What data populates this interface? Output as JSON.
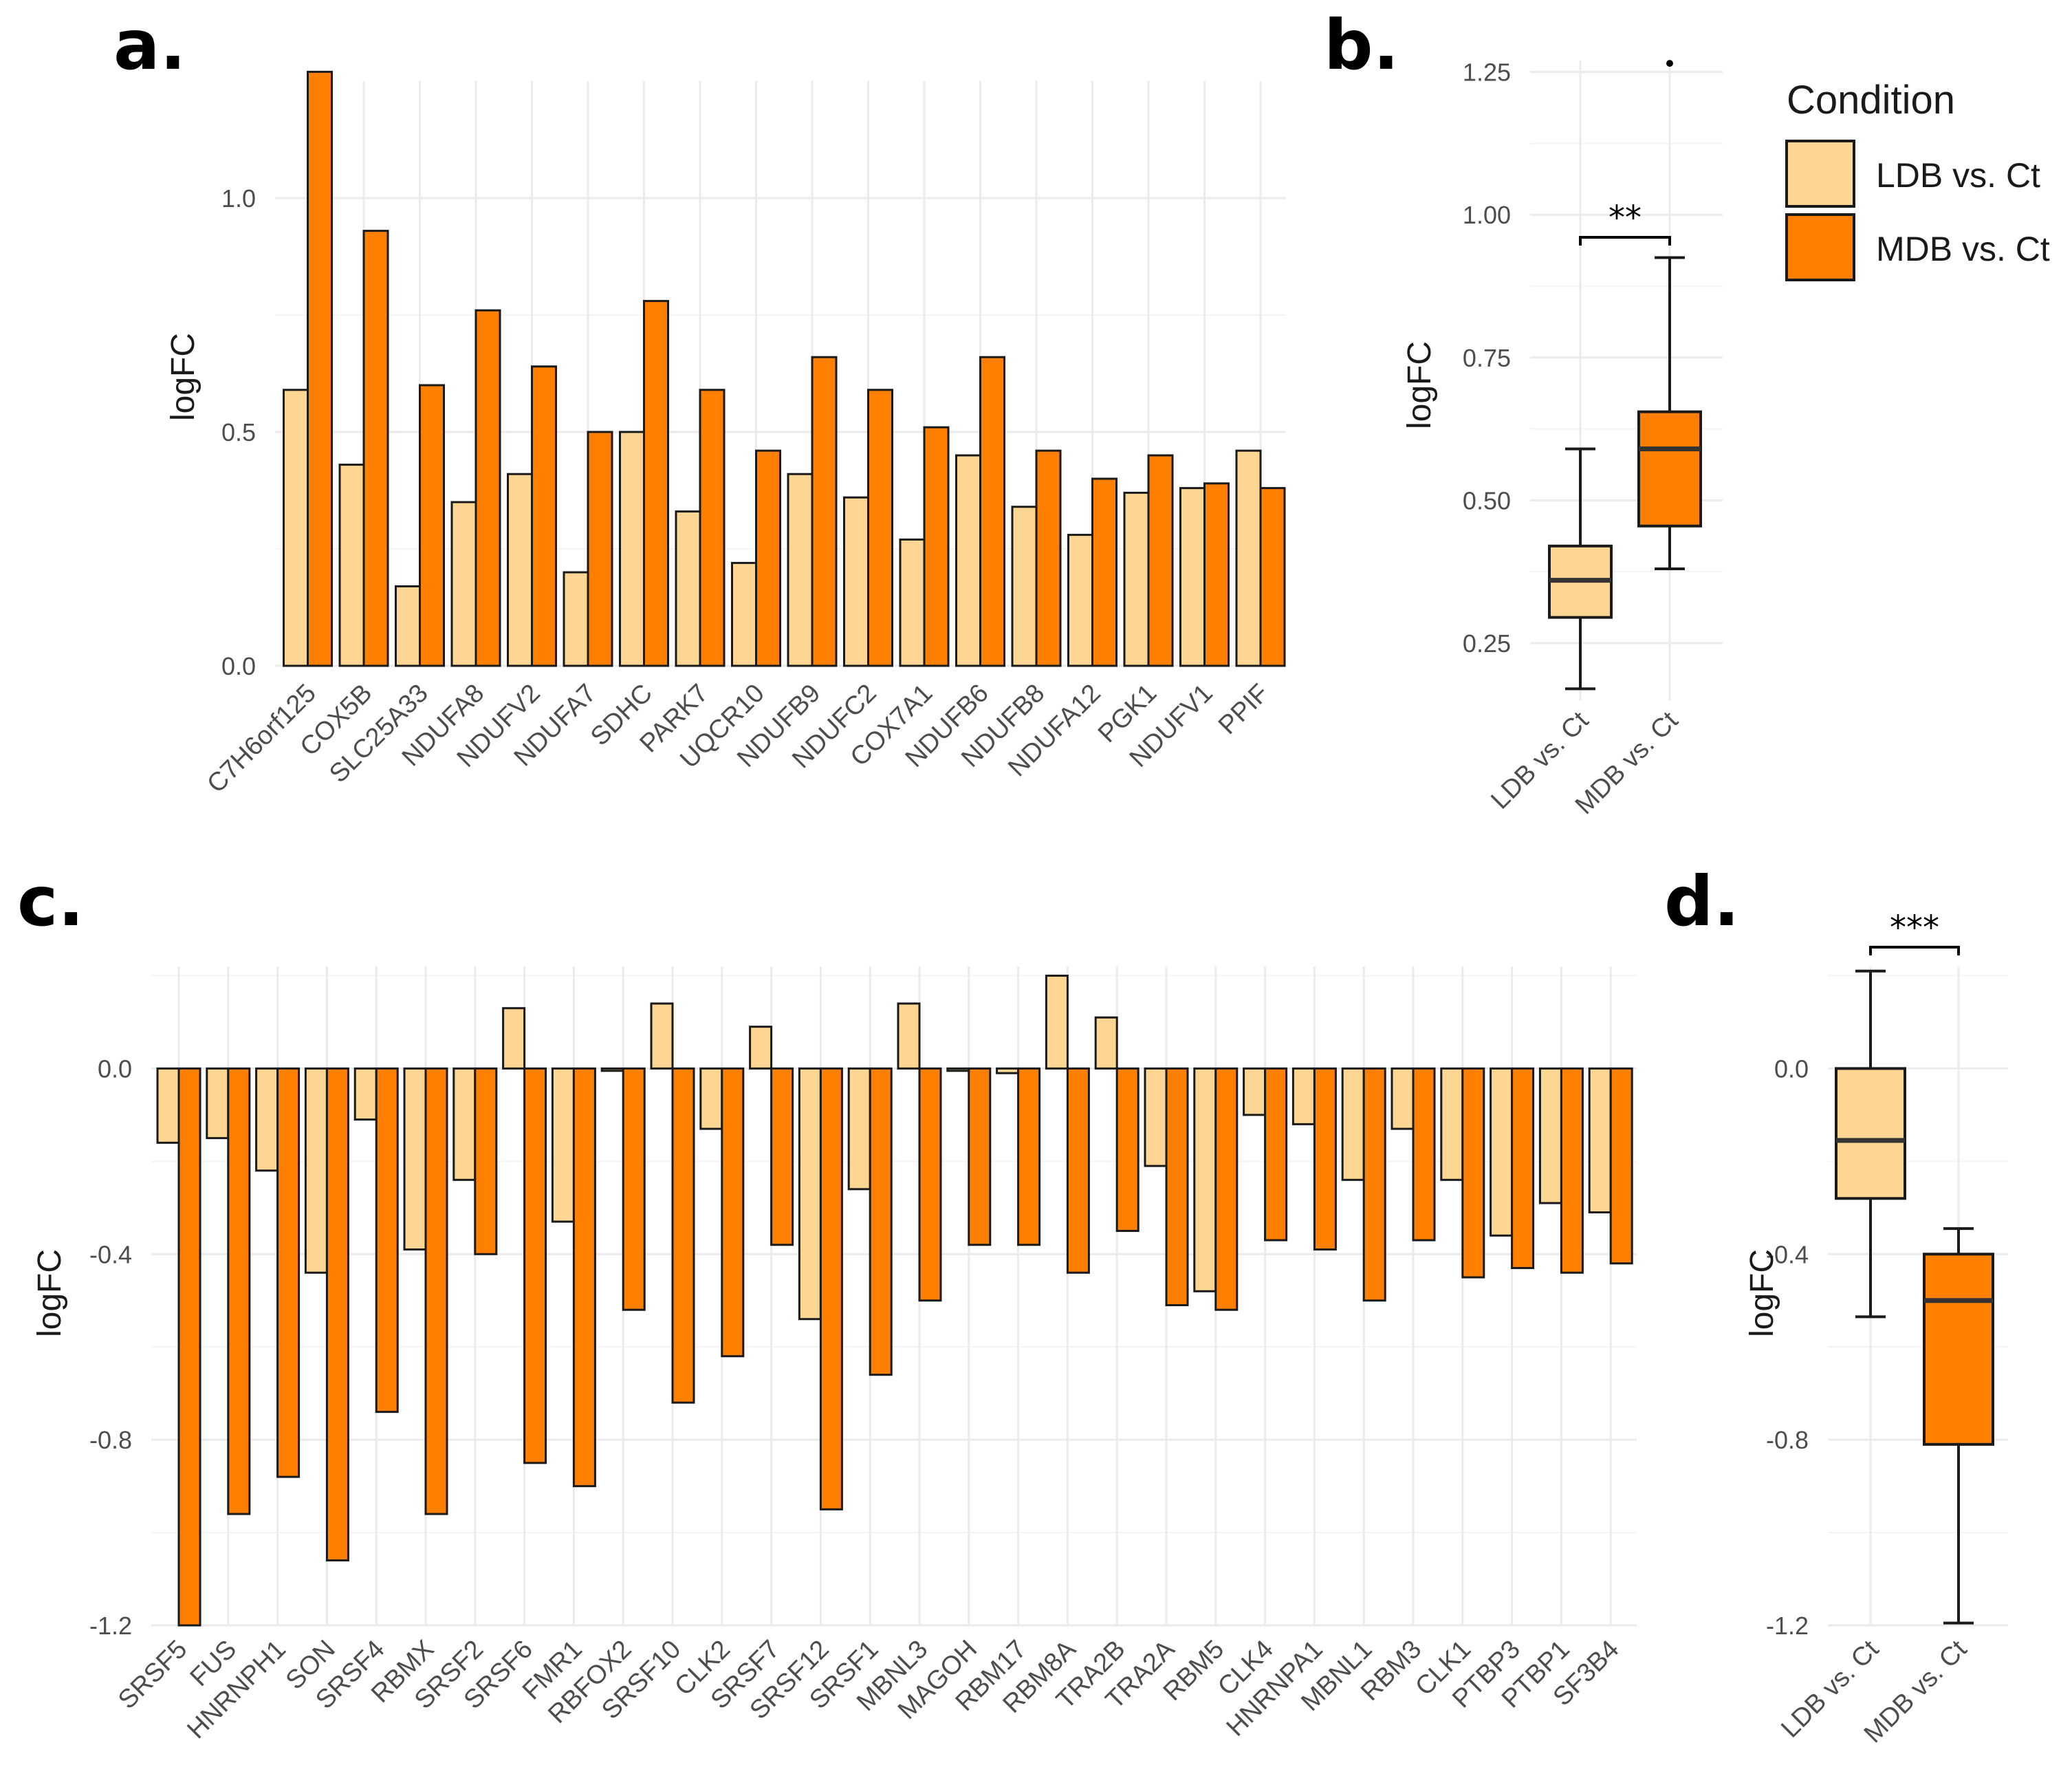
{
  "colors": {
    "ldb": "#FDD693",
    "mdb": "#FF7F00",
    "outline": "#1a1a1a"
  },
  "legend": {
    "title": "Condition",
    "items": [
      {
        "label": "LDB vs. Ct",
        "color": "#FDD693"
      },
      {
        "label": "MDB vs. Ct",
        "color": "#FF7F00"
      }
    ]
  },
  "chart_data": [
    {
      "panel": "a.",
      "type": "bar",
      "ylabel": "logFC",
      "ylim": [
        0,
        1.27
      ],
      "yticks": [
        "0.0",
        "0.5",
        "1.0"
      ],
      "categories": [
        "C7H6orf125",
        "COX5B",
        "SLC25A33",
        "NDUFA8",
        "NDUFV2",
        "NDUFA7",
        "SDHC",
        "PARK7",
        "UQCR10",
        "NDUFB9",
        "NDUFC2",
        "COX7A1",
        "NDUFB6",
        "NDUFB8",
        "NDUFA12",
        "PGK1",
        "NDUFV1",
        "PPIF"
      ],
      "series": [
        {
          "name": "LDB vs. Ct",
          "values": [
            0.59,
            0.43,
            0.17,
            0.35,
            0.41,
            0.2,
            0.5,
            0.33,
            0.22,
            0.41,
            0.36,
            0.27,
            0.45,
            0.34,
            0.28,
            0.37,
            0.38,
            0.46
          ]
        },
        {
          "name": "MDB vs. Ct",
          "values": [
            1.27,
            0.93,
            0.6,
            0.76,
            0.64,
            0.5,
            0.78,
            0.59,
            0.46,
            0.66,
            0.59,
            0.51,
            0.66,
            0.46,
            0.4,
            0.45,
            0.39,
            0.38
          ]
        }
      ]
    },
    {
      "panel": "b.",
      "type": "box",
      "ylabel": "logFC",
      "ylim": [
        0.16,
        1.27
      ],
      "yticks": [
        "0.25",
        "0.50",
        "0.75",
        "1.00",
        "1.25"
      ],
      "categories": [
        "LDB vs. Ct",
        "MDB vs. Ct"
      ],
      "boxes": [
        {
          "name": "LDB vs. Ct",
          "min": 0.17,
          "q1": 0.295,
          "median": 0.36,
          "q3": 0.42,
          "max": 0.59,
          "outliers": []
        },
        {
          "name": "MDB vs. Ct",
          "min": 0.38,
          "q1": 0.455,
          "median": 0.59,
          "q3": 0.655,
          "max": 0.925,
          "outliers": [
            1.265
          ]
        }
      ],
      "significance": "**"
    },
    {
      "panel": "c.",
      "type": "bar",
      "ylabel": "logFC",
      "ylim": [
        -1.2,
        0.21
      ],
      "yticks": [
        "-1.2",
        "-0.8",
        "-0.4",
        "0.0"
      ],
      "categories": [
        "SRSF5",
        "FUS",
        "HNRNPH1",
        "SON",
        "SRSF4",
        "RBMX",
        "SRSF2",
        "SRSF6",
        "FMR1",
        "RBFOX2",
        "SRSF10",
        "CLK2",
        "SRSF7",
        "SRSF12",
        "SRSF1",
        "MBNL3",
        "MAGOH",
        "RBM17",
        "RBM8A",
        "TRA2B",
        "TRA2A",
        "RBM5",
        "CLK4",
        "HNRNPA1",
        "MBNL1",
        "RBM3",
        "CLK1",
        "PTBP3",
        "PTBP1",
        "SF3B4"
      ],
      "series": [
        {
          "name": "LDB vs. Ct",
          "values": [
            -0.16,
            -0.15,
            -0.22,
            -0.44,
            -0.11,
            -0.39,
            -0.24,
            0.13,
            -0.33,
            -0.005,
            0.14,
            -0.13,
            0.09,
            -0.54,
            -0.26,
            0.14,
            -0.005,
            -0.01,
            0.2,
            0.11,
            -0.21,
            -0.48,
            -0.1,
            -0.12,
            -0.24,
            -0.13,
            -0.24,
            -0.36,
            -0.29,
            -0.31
          ]
        },
        {
          "name": "MDB vs. Ct",
          "values": [
            -1.2,
            -0.96,
            -0.88,
            -1.06,
            -0.74,
            -0.96,
            -0.4,
            -0.85,
            -0.9,
            -0.52,
            -0.72,
            -0.62,
            -0.38,
            -0.95,
            -0.66,
            -0.5,
            -0.38,
            -0.38,
            -0.44,
            -0.35,
            -0.51,
            -0.52,
            -0.37,
            -0.39,
            -0.5,
            -0.37,
            -0.45,
            -0.43,
            -0.44,
            -0.42
          ]
        }
      ]
    },
    {
      "panel": "d.",
      "type": "box",
      "ylabel": "logFC",
      "ylim": [
        -1.2,
        0.21
      ],
      "yticks": [
        "-1.2",
        "-0.8",
        "-0.4",
        "0.0"
      ],
      "categories": [
        "LDB vs. Ct",
        "MDB vs. Ct"
      ],
      "boxes": [
        {
          "name": "LDB vs. Ct",
          "min": -0.535,
          "q1": -0.28,
          "median": -0.155,
          "q3": 0.0,
          "max": 0.21,
          "outliers": []
        },
        {
          "name": "MDB vs. Ct",
          "min": -1.195,
          "q1": -0.81,
          "median": -0.5,
          "q3": -0.4,
          "max": -0.345,
          "outliers": []
        }
      ],
      "significance": "***"
    }
  ]
}
